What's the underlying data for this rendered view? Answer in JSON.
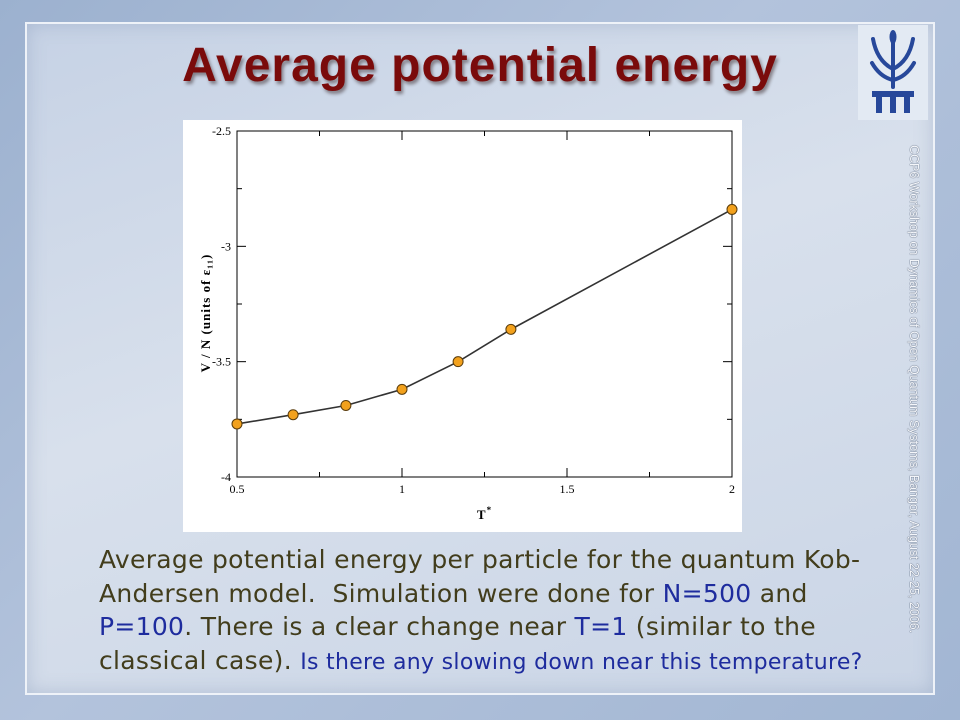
{
  "slide": {
    "title": "Average potential energy",
    "footer_vertical": "CCP6 Workshop on Dynamics of Open Quantum Systems, Bangor, August 22-25, 2006."
  },
  "logo": {
    "icon": "university-emblem-icon"
  },
  "colors": {
    "title": "#7a0b0b",
    "caption_text": "#423d1c"
  },
  "caption": {
    "lines": [
      [
        {
          "text": "Average potential energy per particle for the quantum Kob-"
        }
      ],
      [
        {
          "text": "Andersen model.  Simulation were done for "
        },
        {
          "text": "N=500",
          "color": "#1e2c9e"
        },
        {
          "text": " and"
        }
      ],
      [
        {
          "text": "P=100",
          "color": "#1e2c9e"
        },
        {
          "text": ". There is a clear change near "
        },
        {
          "text": "T=1",
          "color": "#1e2c9e"
        },
        {
          "text": " (similar to the"
        }
      ],
      [
        {
          "text": "classical case). "
        },
        {
          "text": "Is there any slowing down near this temperature?",
          "color": "#1e2c9e"
        }
      ]
    ]
  },
  "chart_data": {
    "type": "line",
    "xlabel": "T*",
    "ylabel": "V / N (units of ε₁₁)",
    "xlim": [
      0.5,
      2
    ],
    "ylim": [
      -4,
      -2.5
    ],
    "xticks": [
      0.5,
      1,
      1.5,
      2
    ],
    "xtick_labels": [
      "0.5",
      "1",
      "1.5",
      "2"
    ],
    "xminor_ticks": [
      0.75,
      1.25,
      1.75
    ],
    "yticks": [
      -4,
      -3.5,
      -3,
      -2.5
    ],
    "ytick_labels": [
      "-4",
      "-3.5",
      "-3",
      "-2.5"
    ],
    "yminor_ticks": [
      -3.75,
      -3.25,
      -2.75
    ],
    "grid": false,
    "series": [
      {
        "x": [
          0.5,
          0.67,
          0.83,
          1.0,
          1.17,
          1.33,
          2.0
        ],
        "y": [
          -3.77,
          -3.73,
          -3.69,
          -3.62,
          -3.5,
          -3.36,
          -2.84
        ],
        "color": "#f2a11d",
        "line_color": "#333333",
        "marker": "circle"
      }
    ]
  }
}
